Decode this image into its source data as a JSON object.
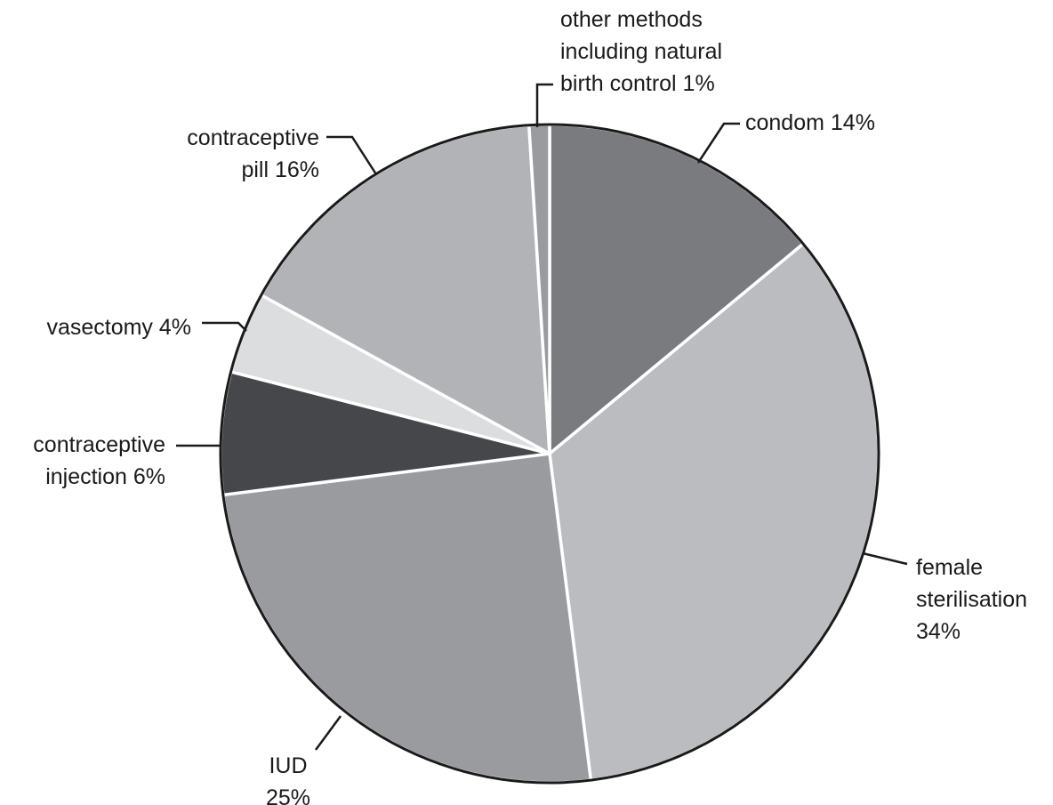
{
  "chart_data": {
    "type": "pie",
    "slices": [
      {
        "label_lines": [
          "condom 14%"
        ],
        "value": 14,
        "color": "#7a7b7f"
      },
      {
        "label_lines": [
          "female",
          "sterilisation",
          "34%"
        ],
        "value": 34,
        "color": "#bbbcc0"
      },
      {
        "label_lines": [
          "IUD",
          "25%"
        ],
        "value": 25,
        "color": "#9a9b9f"
      },
      {
        "label_lines": [
          "contraceptive",
          "injection 6%"
        ],
        "value": 6,
        "color": "#46474a"
      },
      {
        "label_lines": [
          "vasectomy 4%"
        ],
        "value": 4,
        "color": "#dcdddf"
      },
      {
        "label_lines": [
          "contraceptive",
          "pill 16%"
        ],
        "value": 16,
        "color": "#b2b3b7"
      },
      {
        "label_lines": [
          "other methods",
          "including natural",
          "birth control 1%"
        ],
        "value": 1,
        "color": "#9a9b9f"
      }
    ],
    "start": "top",
    "direction": "clockwise",
    "outline_color": "#1a1a1a",
    "separator_color": "#ffffff"
  }
}
